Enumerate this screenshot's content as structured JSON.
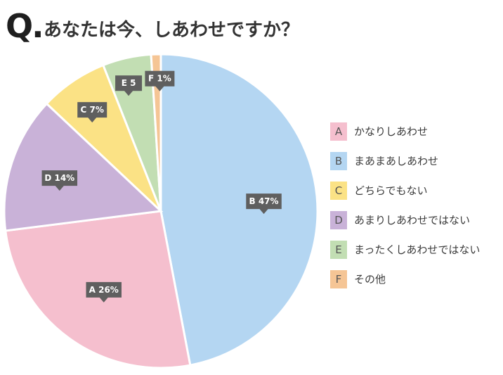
{
  "header": {
    "q_mark": "Q.",
    "question": "あなたは今、しあわせですか？"
  },
  "chart_data": {
    "type": "pie",
    "title": "あなたは今、しあわせですか？",
    "slices": [
      {
        "key": "B",
        "label": "まあまあしあわせ",
        "value": 47,
        "color": "#b4d6f2",
        "callout": "B 47%"
      },
      {
        "key": "A",
        "label": "かなりしあわせ",
        "value": 26,
        "color": "#f5bfce",
        "callout": "A 26%"
      },
      {
        "key": "D",
        "label": "あまりしあわせではない",
        "value": 14,
        "color": "#c9b2d8",
        "callout": "D 14%"
      },
      {
        "key": "C",
        "label": "どちらでもない",
        "value": 7,
        "color": "#fbe285",
        "callout": "C 7%"
      },
      {
        "key": "E",
        "label": "まったくしあわせではない",
        "value": 5,
        "color": "#c2deb3",
        "callout": "E 5"
      },
      {
        "key": "F",
        "label": "その他",
        "value": 1,
        "color": "#f5c595",
        "callout": "F 1%"
      }
    ],
    "legend_position": "right",
    "callout_color": "#5f5f5f"
  },
  "legend": {
    "items": [
      {
        "key": "A",
        "label": "かなりしあわせ",
        "color": "#f5bfce"
      },
      {
        "key": "B",
        "label": "まあまあしあわせ",
        "color": "#b4d6f2"
      },
      {
        "key": "C",
        "label": "どちらでもない",
        "color": "#fbe285"
      },
      {
        "key": "D",
        "label": "あまりしあわせではない",
        "color": "#c9b2d8"
      },
      {
        "key": "E",
        "label": "まったくしあわせではない",
        "color": "#c2deb3"
      },
      {
        "key": "F",
        "label": "その他",
        "color": "#f5c595"
      }
    ]
  }
}
